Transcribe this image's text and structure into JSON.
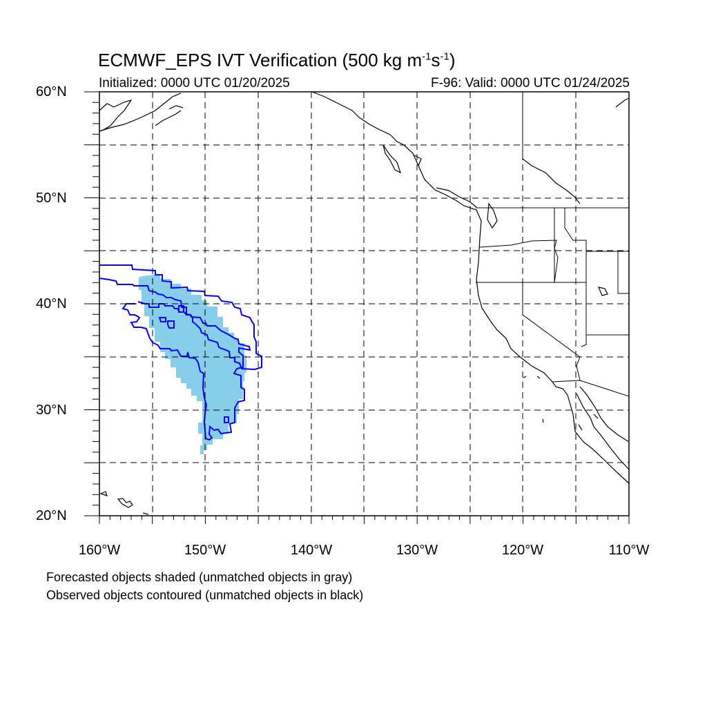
{
  "title": "ECMWF_EPS IVT Verification (500 kg m",
  "title_exp1": "-1",
  "title_mid": "s",
  "title_exp2": "-1",
  "title_end": ")",
  "subtitle_left": "Initialized: 0000 UTC 01/20/2025",
  "subtitle_right": "F-96: Valid: 0000 UTC 01/24/2025",
  "lat_labels": [
    "60°N",
    "50°N",
    "40°N",
    "30°N",
    "20°N"
  ],
  "lon_labels": [
    "160°W",
    "150°W",
    "140°W",
    "130°W",
    "120°W",
    "110°W"
  ],
  "notes": [
    "Forecasted objects shaded (unmatched objects in gray)",
    "Observed objects contoured (unmatched objects in black)"
  ],
  "colors": {
    "forecast_fill": "#87ceeb",
    "observed_contour": "#0000ff",
    "coastline": "#000000",
    "grid": "#000000"
  },
  "map_extent": {
    "lon_min": -160,
    "lon_max": -110,
    "lat_min": 20,
    "lat_max": 60
  }
}
